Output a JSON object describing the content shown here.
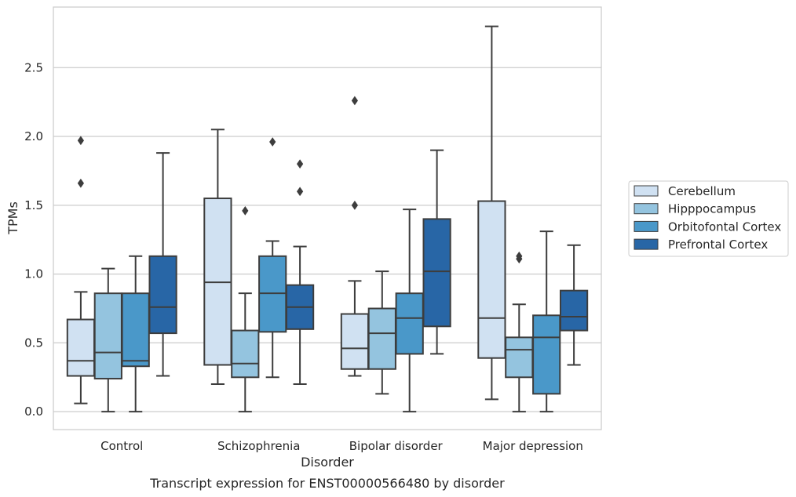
{
  "chart_data": {
    "type": "box",
    "title": "",
    "caption": "Transcript expression for ENST00000566480 by disorder",
    "xlabel": "Disorder",
    "ylabel": "TPMs",
    "ylim": [
      -0.13,
      2.94
    ],
    "yticks": [
      "0.0",
      "0.5",
      "1.0",
      "1.5",
      "2.0",
      "2.5"
    ],
    "ytick_values": [
      0,
      0.5,
      1.0,
      1.5,
      2.0,
      2.5
    ],
    "grid": true,
    "legend_placement": "right",
    "categories": [
      "Control",
      "Schizophrenia",
      "Bipolar disorder",
      "Major depression"
    ],
    "series": [
      {
        "name": "Cerebellum",
        "color": "#d0e1f2",
        "boxes": [
          {
            "whisker_low": 0.06,
            "q1": 0.26,
            "median": 0.37,
            "q3": 0.67,
            "whisker_high": 0.87,
            "outliers": [
              1.66,
              1.97
            ]
          },
          {
            "whisker_low": 0.2,
            "q1": 0.34,
            "median": 0.94,
            "q3": 1.55,
            "whisker_high": 2.05,
            "outliers": []
          },
          {
            "whisker_low": 0.26,
            "q1": 0.31,
            "median": 0.46,
            "q3": 0.71,
            "whisker_high": 0.95,
            "outliers": [
              1.5,
              2.26
            ]
          },
          {
            "whisker_low": 0.09,
            "q1": 0.39,
            "median": 0.68,
            "q3": 1.53,
            "whisker_high": 2.8,
            "outliers": []
          }
        ]
      },
      {
        "name": "Hipppocampus",
        "color": "#94c4df",
        "boxes": [
          {
            "whisker_low": 0.0,
            "q1": 0.24,
            "median": 0.43,
            "q3": 0.86,
            "whisker_high": 1.04,
            "outliers": []
          },
          {
            "whisker_low": 0.0,
            "q1": 0.25,
            "median": 0.35,
            "q3": 0.59,
            "whisker_high": 0.86,
            "outliers": [
              1.46
            ]
          },
          {
            "whisker_low": 0.13,
            "q1": 0.31,
            "median": 0.57,
            "q3": 0.75,
            "whisker_high": 1.02,
            "outliers": []
          },
          {
            "whisker_low": 0.0,
            "q1": 0.25,
            "median": 0.45,
            "q3": 0.54,
            "whisker_high": 0.78,
            "outliers": [
              1.11,
              1.13
            ]
          }
        ]
      },
      {
        "name": "Orbitofontal Cortex",
        "color": "#4a98c9",
        "boxes": [
          {
            "whisker_low": 0.0,
            "q1": 0.33,
            "median": 0.37,
            "q3": 0.86,
            "whisker_high": 1.13,
            "outliers": []
          },
          {
            "whisker_low": 0.25,
            "q1": 0.58,
            "median": 0.86,
            "q3": 1.13,
            "whisker_high": 1.24,
            "outliers": [
              1.96
            ]
          },
          {
            "whisker_low": 0.0,
            "q1": 0.42,
            "median": 0.68,
            "q3": 0.86,
            "whisker_high": 1.47,
            "outliers": []
          },
          {
            "whisker_low": 0.0,
            "q1": 0.13,
            "median": 0.54,
            "q3": 0.7,
            "whisker_high": 1.31,
            "outliers": []
          }
        ]
      },
      {
        "name": "Prefrontal Cortex",
        "color": "#2866a6",
        "boxes": [
          {
            "whisker_low": 0.26,
            "q1": 0.57,
            "median": 0.76,
            "q3": 1.13,
            "whisker_high": 1.88,
            "outliers": []
          },
          {
            "whisker_low": 0.2,
            "q1": 0.6,
            "median": 0.76,
            "q3": 0.92,
            "whisker_high": 1.2,
            "outliers": [
              1.6,
              1.8
            ]
          },
          {
            "whisker_low": 0.42,
            "q1": 0.62,
            "median": 1.02,
            "q3": 1.4,
            "whisker_high": 1.9,
            "outliers": []
          },
          {
            "whisker_low": 0.34,
            "q1": 0.59,
            "median": 0.69,
            "q3": 0.88,
            "whisker_high": 1.21,
            "outliers": []
          }
        ]
      }
    ]
  }
}
